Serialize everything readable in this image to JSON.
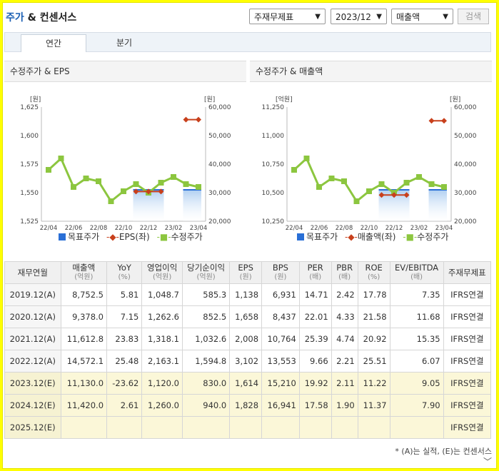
{
  "header": {
    "title_accent": "주가",
    "title_rest": " & 컨센서스",
    "select_statement": "주재무제표",
    "select_period": "2023/12",
    "select_metric": "매출액",
    "search_label": "검색"
  },
  "tabs": [
    "연간",
    "분기"
  ],
  "charts": [
    {
      "title": "수정주가 & EPS",
      "left_unit": "[원]",
      "right_unit": "[원]",
      "left_ticks": [
        "1,625",
        "1,600",
        "1,575",
        "1,550",
        "1,525"
      ],
      "right_ticks": [
        "60,000",
        "50,000",
        "40,000",
        "30,000",
        "20,000"
      ],
      "legend": [
        "목표주가",
        "EPS(좌)",
        "수정주가"
      ]
    },
    {
      "title": "수정주가 & 매출액",
      "left_unit": "[억원]",
      "right_unit": "[원]",
      "left_ticks": [
        "11,250",
        "11,000",
        "10,750",
        "10,500",
        "10,250"
      ],
      "right_ticks": [
        "60,000",
        "50,000",
        "40,000",
        "30,000",
        "20,000"
      ],
      "legend": [
        "목표주가",
        "매출액(좌)",
        "수정주가"
      ]
    }
  ],
  "chart_data": [
    {
      "type": "line",
      "title": "수정주가 & EPS",
      "x": [
        "22/04",
        "22/05",
        "22/06",
        "22/07",
        "22/08",
        "22/09",
        "22/10",
        "22/11",
        "22/12",
        "23/01",
        "23/02",
        "23/03",
        "23/04"
      ],
      "x_tick_labels": [
        "22/04",
        "22/06",
        "22/08",
        "22/10",
        "22/12",
        "23/02",
        "23/04"
      ],
      "y_left_lim": [
        1525,
        1625
      ],
      "y_right_lim": [
        20000,
        60000
      ],
      "series": [
        {
          "name": "수정주가",
          "axis": "right",
          "color": "#8cc63f",
          "values": [
            38000,
            42000,
            32000,
            35000,
            34000,
            27000,
            30500,
            33000,
            30000,
            33500,
            35500,
            33000,
            32000
          ]
        },
        {
          "name": "EPS(좌)",
          "axis": "left",
          "color": "#c8401c",
          "values": [
            null,
            null,
            null,
            null,
            null,
            null,
            null,
            1551,
            1551,
            1551,
            null,
            1614,
            1614
          ]
        },
        {
          "name": "목표주가",
          "axis": "right",
          "color": "#2a6fd6",
          "values": [
            null,
            null,
            null,
            null,
            null,
            null,
            null,
            31000,
            31000,
            31000,
            null,
            31000,
            31000
          ]
        }
      ]
    },
    {
      "type": "line",
      "title": "수정주가 & 매출액",
      "x": [
        "22/04",
        "22/05",
        "22/06",
        "22/07",
        "22/08",
        "22/09",
        "22/10",
        "22/11",
        "22/12",
        "23/01",
        "23/02",
        "23/03",
        "23/04"
      ],
      "x_tick_labels": [
        "22/04",
        "22/06",
        "22/08",
        "22/10",
        "22/12",
        "23/02",
        "23/04"
      ],
      "y_left_lim": [
        10250,
        11250
      ],
      "y_right_lim": [
        20000,
        60000
      ],
      "series": [
        {
          "name": "수정주가",
          "axis": "right",
          "color": "#8cc63f",
          "values": [
            38000,
            42000,
            32000,
            35000,
            34000,
            27000,
            30500,
            33000,
            30000,
            33500,
            35500,
            33000,
            32000
          ]
        },
        {
          "name": "매출액(좌)",
          "axis": "left",
          "color": "#c8401c",
          "values": [
            null,
            null,
            null,
            null,
            null,
            null,
            null,
            10480,
            10480,
            10480,
            null,
            11130,
            11130
          ]
        },
        {
          "name": "목표주가",
          "axis": "right",
          "color": "#2a6fd6",
          "values": [
            null,
            null,
            null,
            null,
            null,
            null,
            null,
            31000,
            31000,
            31000,
            null,
            31000,
            31000
          ]
        }
      ]
    }
  ],
  "table": {
    "headers": [
      {
        "label": "재무연월",
        "unit": ""
      },
      {
        "label": "매출액",
        "unit": "(억원)"
      },
      {
        "label": "YoY",
        "unit": "(%)"
      },
      {
        "label": "영업이익",
        "unit": "(억원)"
      },
      {
        "label": "당기순이익",
        "unit": "(억원)"
      },
      {
        "label": "EPS",
        "unit": "(원)"
      },
      {
        "label": "BPS",
        "unit": "(원)"
      },
      {
        "label": "PER",
        "unit": "(배)"
      },
      {
        "label": "PBR",
        "unit": "(배)"
      },
      {
        "label": "ROE",
        "unit": "(%)"
      },
      {
        "label": "EV/EBITDA",
        "unit": "(배)"
      },
      {
        "label": "주재무제표",
        "unit": ""
      }
    ],
    "rows": [
      {
        "est": false,
        "cells": [
          "2019.12(A)",
          "8,752.5",
          "5.81",
          "1,048.7",
          "585.3",
          "1,138",
          "6,931",
          "14.71",
          "2.42",
          "17.78",
          "7.35",
          "IFRS연결"
        ]
      },
      {
        "est": false,
        "cells": [
          "2020.12(A)",
          "9,378.0",
          "7.15",
          "1,262.6",
          "852.5",
          "1,658",
          "8,437",
          "22.01",
          "4.33",
          "21.58",
          "11.68",
          "IFRS연결"
        ]
      },
      {
        "est": false,
        "cells": [
          "2021.12(A)",
          "11,612.8",
          "23.83",
          "1,318.1",
          "1,032.6",
          "2,008",
          "10,764",
          "25.39",
          "4.74",
          "20.92",
          "15.35",
          "IFRS연결"
        ]
      },
      {
        "est": false,
        "cells": [
          "2022.12(A)",
          "14,572.1",
          "25.48",
          "2,163.1",
          "1,594.8",
          "3,102",
          "13,553",
          "9.66",
          "2.21",
          "25.51",
          "6.07",
          "IFRS연결"
        ]
      },
      {
        "est": true,
        "cells": [
          "2023.12(E)",
          "11,130.0",
          "-23.62",
          "1,120.0",
          "830.0",
          "1,614",
          "15,210",
          "19.92",
          "2.11",
          "11.22",
          "9.05",
          "IFRS연결"
        ]
      },
      {
        "est": true,
        "cells": [
          "2024.12(E)",
          "11,420.0",
          "2.61",
          "1,260.0",
          "940.0",
          "1,828",
          "16,941",
          "17.58",
          "1.90",
          "11.37",
          "7.90",
          "IFRS연결"
        ]
      },
      {
        "est": true,
        "cells": [
          "2025.12(E)",
          "",
          "",
          "",
          "",
          "",
          "",
          "",
          "",
          "",
          "",
          "IFRS연결"
        ]
      }
    ]
  },
  "footnote": "* (A)는 실적, (E)는 컨센서스"
}
